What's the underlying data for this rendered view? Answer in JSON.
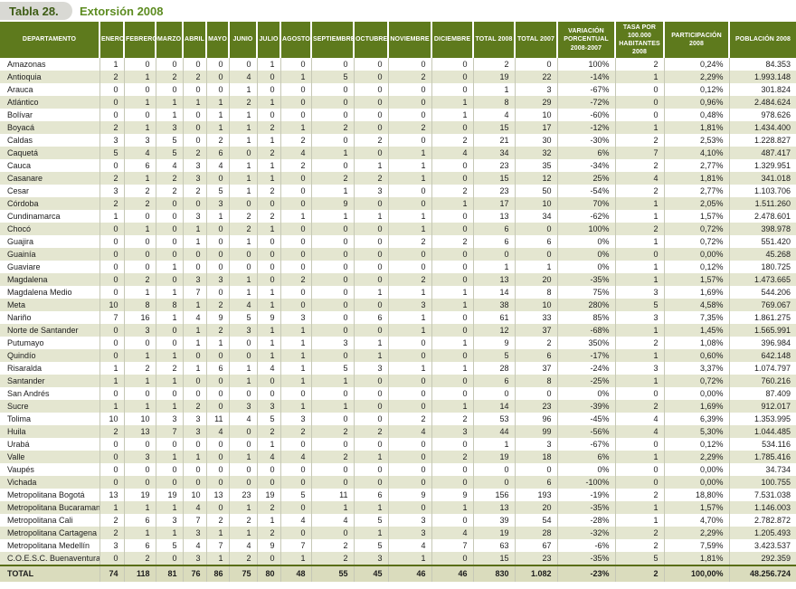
{
  "title": {
    "label": "Tabla 28.",
    "subtitle": "Extorsión 2008"
  },
  "colors": {
    "header-bg": "#5e7a1d",
    "stripe-bg": "#e4e6d0",
    "total-bg": "#dadcbd",
    "grid-line": "#c6c8b6",
    "total-line": "#5a6e18",
    "pill-bg": "#d9d9d4",
    "title-color": "#3d5c14",
    "subtitle-color": "#5d8c21"
  },
  "table": {
    "columns": [
      "DEPARTAMENTO",
      "ENERO",
      "FEBRERO",
      "MARZO",
      "ABRIL",
      "MAYO",
      "JUNIO",
      "JULIO",
      "AGOSTO",
      "SEPTIEMBRE",
      "OCTUBRE",
      "NOVIEMBRE",
      "DICIEMBRE",
      "TOTAL 2008",
      "TOTAL 2007",
      "VARIACIÓN PORCENTUAL 2008-2007",
      "TASA POR 100.000 HABITANTES 2008",
      "PARTICIPACIÓN 2008",
      "POBLACIÓN 2008"
    ],
    "rows": [
      [
        "Amazonas",
        1,
        0,
        0,
        0,
        0,
        0,
        1,
        0,
        0,
        0,
        0,
        0,
        2,
        0,
        "100%",
        2,
        "0,24%",
        "84.353"
      ],
      [
        "Antioquia",
        2,
        1,
        2,
        2,
        0,
        4,
        0,
        1,
        5,
        0,
        2,
        0,
        19,
        22,
        "-14%",
        1,
        "2,29%",
        "1.993.148"
      ],
      [
        "Arauca",
        0,
        0,
        0,
        0,
        0,
        1,
        0,
        0,
        0,
        0,
        0,
        0,
        1,
        3,
        "-67%",
        0,
        "0,12%",
        "301.824"
      ],
      [
        "Atlántico",
        0,
        1,
        1,
        1,
        1,
        2,
        1,
        0,
        0,
        0,
        0,
        1,
        8,
        29,
        "-72%",
        0,
        "0,96%",
        "2.484.624"
      ],
      [
        "Bolívar",
        0,
        0,
        1,
        0,
        1,
        1,
        0,
        0,
        0,
        0,
        0,
        1,
        4,
        10,
        "-60%",
        0,
        "0,48%",
        "978.626"
      ],
      [
        "Boyacá",
        2,
        1,
        3,
        0,
        1,
        1,
        2,
        1,
        2,
        0,
        2,
        0,
        15,
        17,
        "-12%",
        1,
        "1,81%",
        "1.434.400"
      ],
      [
        "Caldas",
        3,
        3,
        5,
        0,
        2,
        1,
        1,
        2,
        0,
        2,
        0,
        2,
        21,
        30,
        "-30%",
        2,
        "2,53%",
        "1.228.827"
      ],
      [
        "Caquetá",
        5,
        4,
        5,
        2,
        6,
        0,
        2,
        4,
        1,
        0,
        1,
        4,
        34,
        32,
        "6%",
        7,
        "4,10%",
        "487.417"
      ],
      [
        "Cauca",
        0,
        6,
        4,
        3,
        4,
        1,
        1,
        2,
        0,
        1,
        1,
        0,
        23,
        35,
        "-34%",
        2,
        "2,77%",
        "1.329.951"
      ],
      [
        "Casanare",
        2,
        1,
        2,
        3,
        0,
        1,
        1,
        0,
        2,
        2,
        1,
        0,
        15,
        12,
        "25%",
        4,
        "1,81%",
        "341.018"
      ],
      [
        "Cesar",
        3,
        2,
        2,
        2,
        5,
        1,
        2,
        0,
        1,
        3,
        0,
        2,
        23,
        50,
        "-54%",
        2,
        "2,77%",
        "1.103.706"
      ],
      [
        "Córdoba",
        2,
        2,
        0,
        0,
        3,
        0,
        0,
        0,
        9,
        0,
        0,
        1,
        17,
        10,
        "70%",
        1,
        "2,05%",
        "1.511.260"
      ],
      [
        "Cundinamarca",
        1,
        0,
        0,
        3,
        1,
        2,
        2,
        1,
        1,
        1,
        1,
        0,
        13,
        34,
        "-62%",
        1,
        "1,57%",
        "2.478.601"
      ],
      [
        "Chocó",
        0,
        1,
        0,
        1,
        0,
        2,
        1,
        0,
        0,
        0,
        1,
        0,
        6,
        0,
        "100%",
        2,
        "0,72%",
        "398.978"
      ],
      [
        "Guajira",
        0,
        0,
        0,
        1,
        0,
        1,
        0,
        0,
        0,
        0,
        2,
        2,
        6,
        6,
        "0%",
        1,
        "0,72%",
        "551.420"
      ],
      [
        "Guainía",
        0,
        0,
        0,
        0,
        0,
        0,
        0,
        0,
        0,
        0,
        0,
        0,
        0,
        0,
        "0%",
        0,
        "0,00%",
        "45.268"
      ],
      [
        "Guaviare",
        0,
        0,
        1,
        0,
        0,
        0,
        0,
        0,
        0,
        0,
        0,
        0,
        1,
        1,
        "0%",
        1,
        "0,12%",
        "180.725"
      ],
      [
        "Magdalena",
        0,
        2,
        0,
        3,
        3,
        1,
        0,
        2,
        0,
        0,
        2,
        0,
        13,
        20,
        "-35%",
        1,
        "1,57%",
        "1.473.665"
      ],
      [
        "Magdalena Medio",
        0,
        1,
        1,
        7,
        0,
        1,
        1,
        0,
        0,
        1,
        1,
        1,
        14,
        8,
        "75%",
        3,
        "1,69%",
        "544.206"
      ],
      [
        "Meta",
        10,
        8,
        8,
        1,
        2,
        4,
        1,
        0,
        0,
        0,
        3,
        1,
        38,
        10,
        "280%",
        5,
        "4,58%",
        "769.067"
      ],
      [
        "Nariño",
        7,
        16,
        1,
        4,
        9,
        5,
        9,
        3,
        0,
        6,
        1,
        0,
        61,
        33,
        "85%",
        3,
        "7,35%",
        "1.861.275"
      ],
      [
        "Norte de Santander",
        0,
        3,
        0,
        1,
        2,
        3,
        1,
        1,
        0,
        0,
        1,
        0,
        12,
        37,
        "-68%",
        1,
        "1,45%",
        "1.565.991"
      ],
      [
        "Putumayo",
        0,
        0,
        0,
        1,
        1,
        0,
        1,
        1,
        3,
        1,
        0,
        1,
        9,
        2,
        "350%",
        2,
        "1,08%",
        "396.984"
      ],
      [
        "Quindío",
        0,
        1,
        1,
        0,
        0,
        0,
        1,
        1,
        0,
        1,
        0,
        0,
        5,
        6,
        "-17%",
        1,
        "0,60%",
        "642.148"
      ],
      [
        "Risaralda",
        1,
        2,
        2,
        1,
        6,
        1,
        4,
        1,
        5,
        3,
        1,
        1,
        28,
        37,
        "-24%",
        3,
        "3,37%",
        "1.074.797"
      ],
      [
        "Santander",
        1,
        1,
        1,
        0,
        0,
        1,
        0,
        1,
        1,
        0,
        0,
        0,
        6,
        8,
        "-25%",
        1,
        "0,72%",
        "760.216"
      ],
      [
        "San Andrés",
        0,
        0,
        0,
        0,
        0,
        0,
        0,
        0,
        0,
        0,
        0,
        0,
        0,
        0,
        "0%",
        0,
        "0,00%",
        "87.409"
      ],
      [
        "Sucre",
        1,
        1,
        1,
        2,
        0,
        3,
        3,
        1,
        1,
        0,
        0,
        1,
        14,
        23,
        "-39%",
        2,
        "1,69%",
        "912.017"
      ],
      [
        "Tolima",
        10,
        10,
        3,
        3,
        11,
        4,
        5,
        3,
        0,
        0,
        2,
        2,
        53,
        96,
        "-45%",
        4,
        "6,39%",
        "1.353.995"
      ],
      [
        "Huila",
        2,
        13,
        7,
        3,
        4,
        0,
        2,
        2,
        2,
        2,
        4,
        3,
        44,
        99,
        "-56%",
        4,
        "5,30%",
        "1.044.485"
      ],
      [
        "Urabá",
        0,
        0,
        0,
        0,
        0,
        0,
        1,
        0,
        0,
        0,
        0,
        0,
        1,
        3,
        "-67%",
        0,
        "0,12%",
        "534.116"
      ],
      [
        "Valle",
        0,
        3,
        1,
        1,
        0,
        1,
        4,
        4,
        2,
        1,
        0,
        2,
        19,
        18,
        "6%",
        1,
        "2,29%",
        "1.785.416"
      ],
      [
        "Vaupés",
        0,
        0,
        0,
        0,
        0,
        0,
        0,
        0,
        0,
        0,
        0,
        0,
        0,
        0,
        "0%",
        0,
        "0,00%",
        "34.734"
      ],
      [
        "Vichada",
        0,
        0,
        0,
        0,
        0,
        0,
        0,
        0,
        0,
        0,
        0,
        0,
        0,
        6,
        "-100%",
        0,
        "0,00%",
        "100.755"
      ],
      [
        "Metropolitana Bogotá",
        13,
        19,
        19,
        10,
        13,
        23,
        19,
        5,
        11,
        6,
        9,
        9,
        156,
        193,
        "-19%",
        2,
        "18,80%",
        "7.531.038"
      ],
      [
        "Metropolitana Bucaramanga",
        1,
        1,
        1,
        4,
        0,
        1,
        2,
        0,
        1,
        1,
        0,
        1,
        13,
        20,
        "-35%",
        1,
        "1,57%",
        "1.146.003"
      ],
      [
        "Metropolitana Cali",
        2,
        6,
        3,
        7,
        2,
        2,
        1,
        4,
        4,
        5,
        3,
        0,
        39,
        54,
        "-28%",
        1,
        "4,70%",
        "2.782.872"
      ],
      [
        "Metropolitana Cartagena",
        2,
        1,
        1,
        3,
        1,
        1,
        2,
        0,
        0,
        1,
        3,
        4,
        19,
        28,
        "-32%",
        2,
        "2,29%",
        "1.205.493"
      ],
      [
        "Metropolitana Medellín",
        3,
        6,
        5,
        4,
        7,
        4,
        9,
        7,
        2,
        5,
        4,
        7,
        63,
        67,
        "-6%",
        2,
        "7,59%",
        "3.423.537"
      ],
      [
        "C.O.E.S.C. Buenaventura",
        0,
        2,
        0,
        3,
        1,
        2,
        0,
        1,
        2,
        3,
        1,
        0,
        15,
        23,
        "-35%",
        5,
        "1,81%",
        "292.359"
      ]
    ],
    "total_row": [
      "TOTAL",
      74,
      118,
      81,
      76,
      86,
      75,
      80,
      48,
      55,
      45,
      46,
      46,
      830,
      "1.082",
      "-23%",
      2,
      "100,00%",
      "48.256.724"
    ]
  }
}
